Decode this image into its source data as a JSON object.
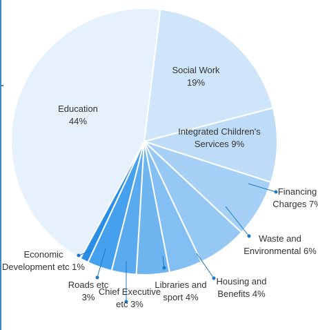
{
  "chart_data": {
    "type": "pie",
    "title": "",
    "start_angle_deg": 7,
    "slices": [
      {
        "label_lines": [
          "Social Work",
          "19%"
        ],
        "value": 19,
        "color": "#cfe5fa"
      },
      {
        "label_lines": [
          "Integrated Children's",
          "Services 9%"
        ],
        "value": 9,
        "color": "#bedcf8"
      },
      {
        "label_lines": [
          "Financing",
          "Charges 7%"
        ],
        "value": 7,
        "color": "#a6d0f6"
      },
      {
        "label_lines": [
          "Waste and",
          "Environmental 6%"
        ],
        "value": 6,
        "color": "#96c8f4"
      },
      {
        "label_lines": [
          "Housing and",
          "Benefits 4%"
        ],
        "value": 4,
        "color": "#83bff2"
      },
      {
        "label_lines": [
          "Libraries and",
          "sport 4%"
        ],
        "value": 4,
        "color": "#6fb5f0"
      },
      {
        "label_lines": [
          "Chief Executive",
          "etc 3%"
        ],
        "value": 3,
        "color": "#5aaaef"
      },
      {
        "label_lines": [
          "Roads etc",
          "3%"
        ],
        "value": 3,
        "color": "#45a0ee"
      },
      {
        "label_lines": [
          "Economic",
          "Development etc 1%"
        ],
        "value": 1,
        "color": "#2a8ee6"
      },
      {
        "label_lines": [
          "Education",
          "44%"
        ],
        "value": 44,
        "color": "#e6f1fc"
      }
    ],
    "label_style": {
      "inside_text_color": "#333333",
      "leader_color": "#1a78c2"
    }
  },
  "frame": {
    "rule_color": "#3a88c8"
  }
}
